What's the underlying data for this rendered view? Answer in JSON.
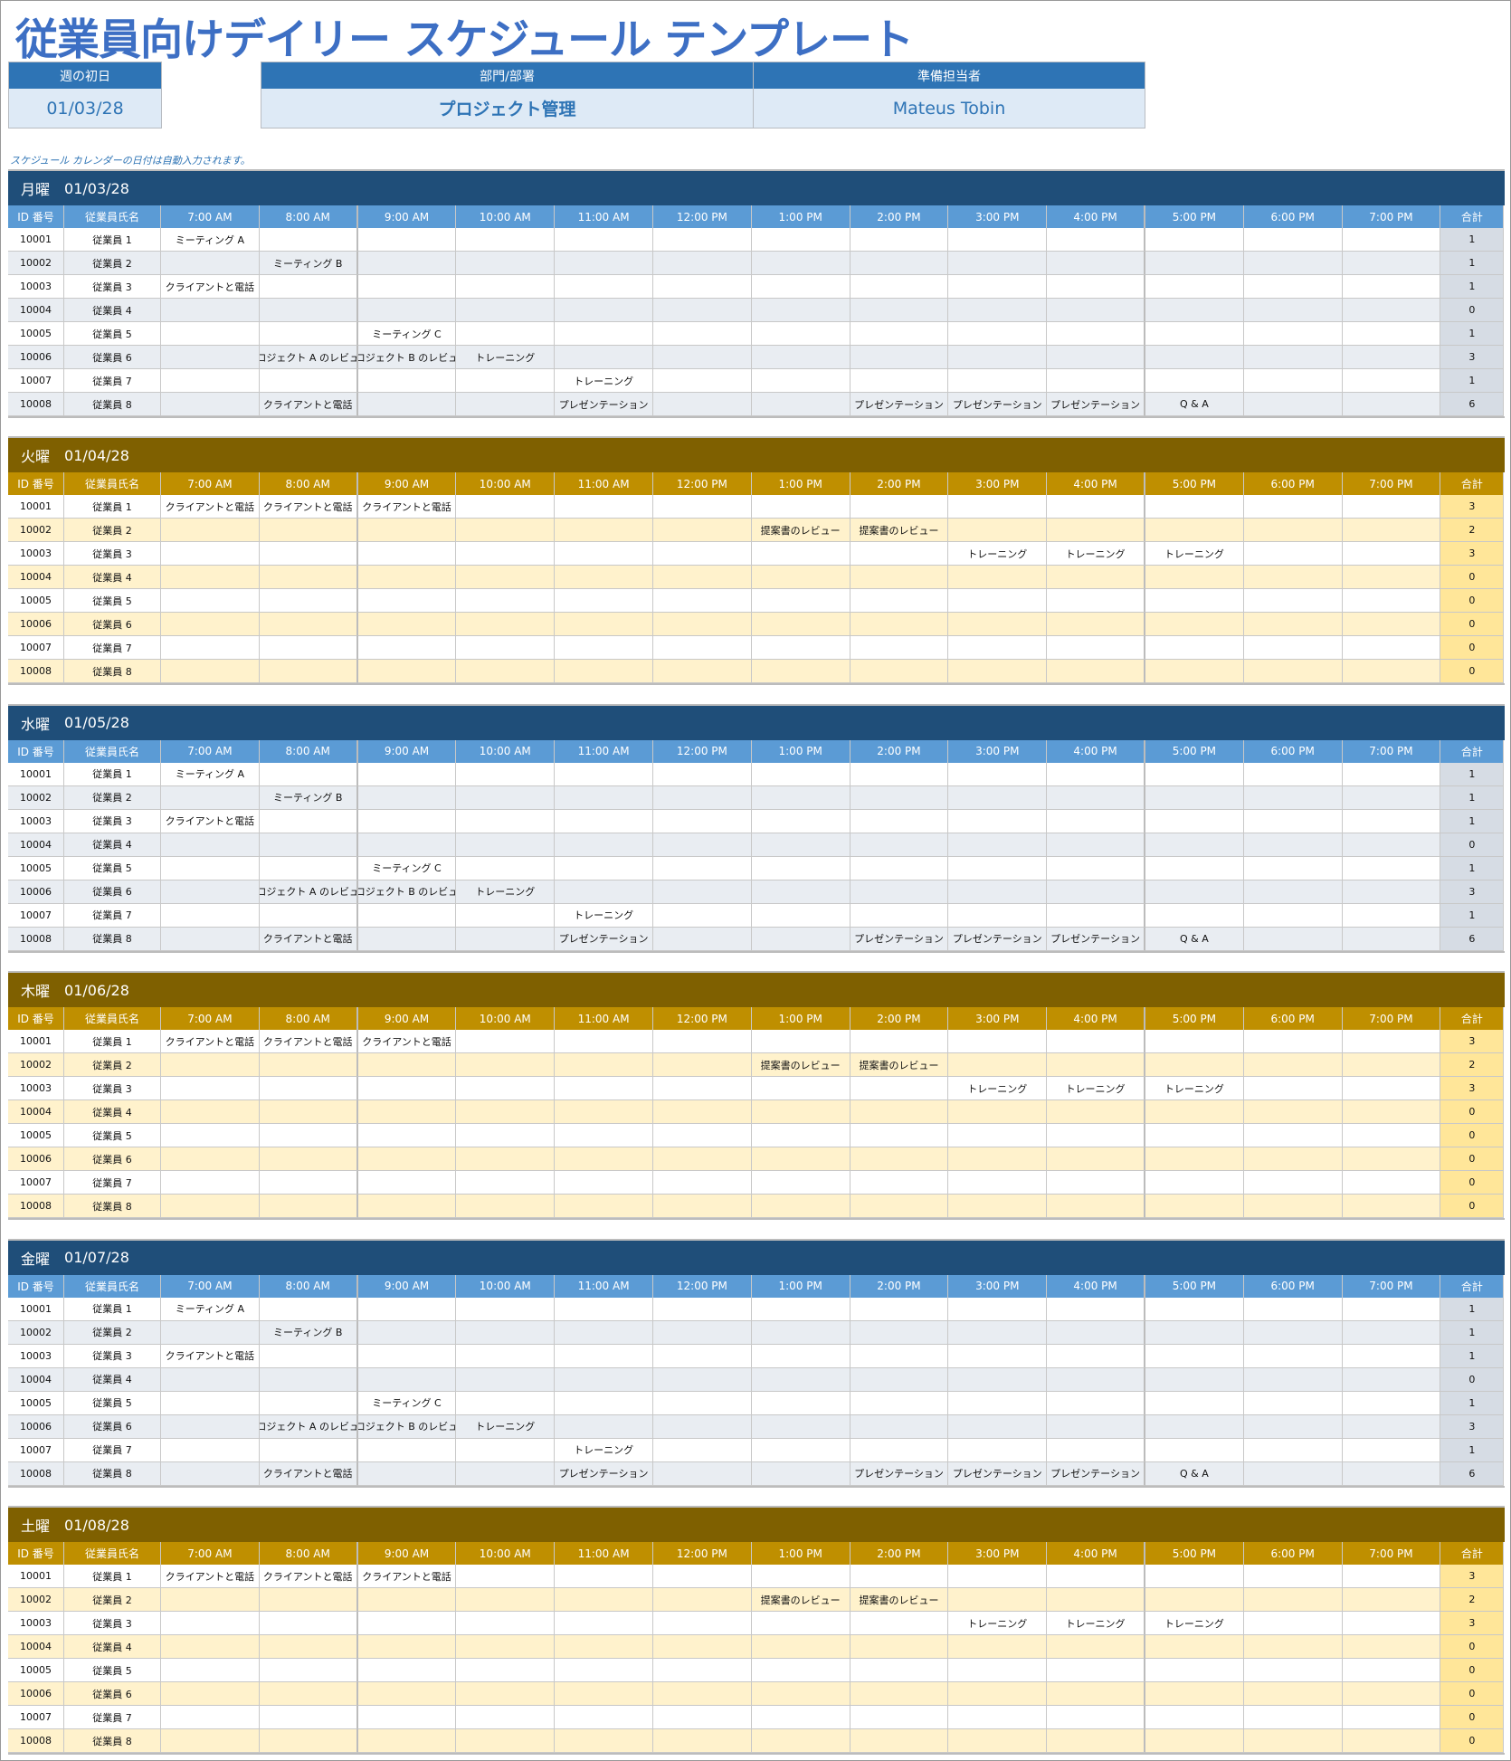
{
  "title": "従業員向けデイリー スケジュール テンプレート",
  "info": {
    "week_start_label": "週の初日",
    "week_start": "01/03/28",
    "dept_label": "部門/部署",
    "dept": "プロジェクト管理",
    "prepared_label": "準備担当者",
    "prepared": "Mateus Tobin"
  },
  "note": "スケジュール カレンダーの日付は自動入力されます。",
  "columns": {
    "id": "ID 番号",
    "name": "従業員氏名",
    "times": [
      "7:00 AM",
      "8:00 AM",
      "9:00 AM",
      "10:00 AM",
      "11:00 AM",
      "12:00 PM",
      "1:00 PM",
      "2:00 PM",
      "3:00 PM",
      "4:00 PM",
      "5:00 PM",
      "6:00 PM",
      "7:00 PM"
    ],
    "total": "合計"
  },
  "colors": {
    "blue_band": "#1f4e79",
    "blue_header": "#5b9bd5",
    "gold_band": "#7f6000",
    "gold_header": "#bf8f00"
  },
  "days": [
    {
      "day": "月曜",
      "date": "01/03/28",
      "theme": "blue",
      "rows": [
        {
          "id": "10001",
          "name": "従業員 1",
          "cells": [
            "ミーティング A",
            "",
            "",
            "",
            "",
            "",
            "",
            "",
            "",
            "",
            "",
            "",
            ""
          ],
          "total": "1"
        },
        {
          "id": "10002",
          "name": "従業員 2",
          "cells": [
            "",
            "ミーティング B",
            "",
            "",
            "",
            "",
            "",
            "",
            "",
            "",
            "",
            "",
            ""
          ],
          "total": "1"
        },
        {
          "id": "10003",
          "name": "従業員 3",
          "cells": [
            "クライアントと電話",
            "",
            "",
            "",
            "",
            "",
            "",
            "",
            "",
            "",
            "",
            "",
            ""
          ],
          "total": "1"
        },
        {
          "id": "10004",
          "name": "従業員 4",
          "cells": [
            "",
            "",
            "",
            "",
            "",
            "",
            "",
            "",
            "",
            "",
            "",
            "",
            ""
          ],
          "total": "0"
        },
        {
          "id": "10005",
          "name": "従業員 5",
          "cells": [
            "",
            "",
            "ミーティング C",
            "",
            "",
            "",
            "",
            "",
            "",
            "",
            "",
            "",
            ""
          ],
          "total": "1"
        },
        {
          "id": "10006",
          "name": "従業員 6",
          "cells": [
            "",
            "プロジェクト A のレビュー",
            "プロジェクト B のレビュー",
            "トレーニング",
            "",
            "",
            "",
            "",
            "",
            "",
            "",
            "",
            ""
          ],
          "total": "3"
        },
        {
          "id": "10007",
          "name": "従業員 7",
          "cells": [
            "",
            "",
            "",
            "",
            "トレーニング",
            "",
            "",
            "",
            "",
            "",
            "",
            "",
            ""
          ],
          "total": "1"
        },
        {
          "id": "10008",
          "name": "従業員 8",
          "cells": [
            "",
            "クライアントと電話",
            "",
            "",
            "プレゼンテーション",
            "",
            "",
            "プレゼンテーション",
            "プレゼンテーション",
            "プレゼンテーション",
            "Q & A",
            "",
            ""
          ],
          "total": "6"
        }
      ]
    },
    {
      "day": "火曜",
      "date": "01/04/28",
      "theme": "gold",
      "rows": [
        {
          "id": "10001",
          "name": "従業員 1",
          "cells": [
            "クライアントと電話",
            "クライアントと電話",
            "クライアントと電話",
            "",
            "",
            "",
            "",
            "",
            "",
            "",
            "",
            "",
            ""
          ],
          "total": "3"
        },
        {
          "id": "10002",
          "name": "従業員 2",
          "cells": [
            "",
            "",
            "",
            "",
            "",
            "",
            "提案書のレビュー",
            "提案書のレビュー",
            "",
            "",
            "",
            "",
            ""
          ],
          "total": "2"
        },
        {
          "id": "10003",
          "name": "従業員 3",
          "cells": [
            "",
            "",
            "",
            "",
            "",
            "",
            "",
            "",
            "トレーニング",
            "トレーニング",
            "トレーニング",
            "",
            ""
          ],
          "total": "3"
        },
        {
          "id": "10004",
          "name": "従業員 4",
          "cells": [
            "",
            "",
            "",
            "",
            "",
            "",
            "",
            "",
            "",
            "",
            "",
            "",
            ""
          ],
          "total": "0"
        },
        {
          "id": "10005",
          "name": "従業員 5",
          "cells": [
            "",
            "",
            "",
            "",
            "",
            "",
            "",
            "",
            "",
            "",
            "",
            "",
            ""
          ],
          "total": "0"
        },
        {
          "id": "10006",
          "name": "従業員 6",
          "cells": [
            "",
            "",
            "",
            "",
            "",
            "",
            "",
            "",
            "",
            "",
            "",
            "",
            ""
          ],
          "total": "0"
        },
        {
          "id": "10007",
          "name": "従業員 7",
          "cells": [
            "",
            "",
            "",
            "",
            "",
            "",
            "",
            "",
            "",
            "",
            "",
            "",
            ""
          ],
          "total": "0"
        },
        {
          "id": "10008",
          "name": "従業員 8",
          "cells": [
            "",
            "",
            "",
            "",
            "",
            "",
            "",
            "",
            "",
            "",
            "",
            "",
            ""
          ],
          "total": "0"
        }
      ]
    },
    {
      "day": "水曜",
      "date": "01/05/28",
      "theme": "blue",
      "rows": [
        {
          "id": "10001",
          "name": "従業員 1",
          "cells": [
            "ミーティング A",
            "",
            "",
            "",
            "",
            "",
            "",
            "",
            "",
            "",
            "",
            "",
            ""
          ],
          "total": "1"
        },
        {
          "id": "10002",
          "name": "従業員 2",
          "cells": [
            "",
            "ミーティング B",
            "",
            "",
            "",
            "",
            "",
            "",
            "",
            "",
            "",
            "",
            ""
          ],
          "total": "1"
        },
        {
          "id": "10003",
          "name": "従業員 3",
          "cells": [
            "クライアントと電話",
            "",
            "",
            "",
            "",
            "",
            "",
            "",
            "",
            "",
            "",
            "",
            ""
          ],
          "total": "1"
        },
        {
          "id": "10004",
          "name": "従業員 4",
          "cells": [
            "",
            "",
            "",
            "",
            "",
            "",
            "",
            "",
            "",
            "",
            "",
            "",
            ""
          ],
          "total": "0"
        },
        {
          "id": "10005",
          "name": "従業員 5",
          "cells": [
            "",
            "",
            "ミーティング C",
            "",
            "",
            "",
            "",
            "",
            "",
            "",
            "",
            "",
            ""
          ],
          "total": "1"
        },
        {
          "id": "10006",
          "name": "従業員 6",
          "cells": [
            "",
            "プロジェクト A のレビュー",
            "プロジェクト B のレビュー",
            "トレーニング",
            "",
            "",
            "",
            "",
            "",
            "",
            "",
            "",
            ""
          ],
          "total": "3"
        },
        {
          "id": "10007",
          "name": "従業員 7",
          "cells": [
            "",
            "",
            "",
            "",
            "トレーニング",
            "",
            "",
            "",
            "",
            "",
            "",
            "",
            ""
          ],
          "total": "1"
        },
        {
          "id": "10008",
          "name": "従業員 8",
          "cells": [
            "",
            "クライアントと電話",
            "",
            "",
            "プレゼンテーション",
            "",
            "",
            "プレゼンテーション",
            "プレゼンテーション",
            "プレゼンテーション",
            "Q & A",
            "",
            ""
          ],
          "total": "6"
        }
      ]
    },
    {
      "day": "木曜",
      "date": "01/06/28",
      "theme": "gold",
      "rows": [
        {
          "id": "10001",
          "name": "従業員 1",
          "cells": [
            "クライアントと電話",
            "クライアントと電話",
            "クライアントと電話",
            "",
            "",
            "",
            "",
            "",
            "",
            "",
            "",
            "",
            ""
          ],
          "total": "3"
        },
        {
          "id": "10002",
          "name": "従業員 2",
          "cells": [
            "",
            "",
            "",
            "",
            "",
            "",
            "提案書のレビュー",
            "提案書のレビュー",
            "",
            "",
            "",
            "",
            ""
          ],
          "total": "2"
        },
        {
          "id": "10003",
          "name": "従業員 3",
          "cells": [
            "",
            "",
            "",
            "",
            "",
            "",
            "",
            "",
            "トレーニング",
            "トレーニング",
            "トレーニング",
            "",
            ""
          ],
          "total": "3"
        },
        {
          "id": "10004",
          "name": "従業員 4",
          "cells": [
            "",
            "",
            "",
            "",
            "",
            "",
            "",
            "",
            "",
            "",
            "",
            "",
            ""
          ],
          "total": "0"
        },
        {
          "id": "10005",
          "name": "従業員 5",
          "cells": [
            "",
            "",
            "",
            "",
            "",
            "",
            "",
            "",
            "",
            "",
            "",
            "",
            ""
          ],
          "total": "0"
        },
        {
          "id": "10006",
          "name": "従業員 6",
          "cells": [
            "",
            "",
            "",
            "",
            "",
            "",
            "",
            "",
            "",
            "",
            "",
            "",
            ""
          ],
          "total": "0"
        },
        {
          "id": "10007",
          "name": "従業員 7",
          "cells": [
            "",
            "",
            "",
            "",
            "",
            "",
            "",
            "",
            "",
            "",
            "",
            "",
            ""
          ],
          "total": "0"
        },
        {
          "id": "10008",
          "name": "従業員 8",
          "cells": [
            "",
            "",
            "",
            "",
            "",
            "",
            "",
            "",
            "",
            "",
            "",
            "",
            ""
          ],
          "total": "0"
        }
      ]
    },
    {
      "day": "金曜",
      "date": "01/07/28",
      "theme": "blue",
      "rows": [
        {
          "id": "10001",
          "name": "従業員 1",
          "cells": [
            "ミーティング A",
            "",
            "",
            "",
            "",
            "",
            "",
            "",
            "",
            "",
            "",
            "",
            ""
          ],
          "total": "1"
        },
        {
          "id": "10002",
          "name": "従業員 2",
          "cells": [
            "",
            "ミーティング B",
            "",
            "",
            "",
            "",
            "",
            "",
            "",
            "",
            "",
            "",
            ""
          ],
          "total": "1"
        },
        {
          "id": "10003",
          "name": "従業員 3",
          "cells": [
            "クライアントと電話",
            "",
            "",
            "",
            "",
            "",
            "",
            "",
            "",
            "",
            "",
            "",
            ""
          ],
          "total": "1"
        },
        {
          "id": "10004",
          "name": "従業員 4",
          "cells": [
            "",
            "",
            "",
            "",
            "",
            "",
            "",
            "",
            "",
            "",
            "",
            "",
            ""
          ],
          "total": "0"
        },
        {
          "id": "10005",
          "name": "従業員 5",
          "cells": [
            "",
            "",
            "ミーティング C",
            "",
            "",
            "",
            "",
            "",
            "",
            "",
            "",
            "",
            ""
          ],
          "total": "1"
        },
        {
          "id": "10006",
          "name": "従業員 6",
          "cells": [
            "",
            "プロジェクト A のレビュー",
            "プロジェクト B のレビュー",
            "トレーニング",
            "",
            "",
            "",
            "",
            "",
            "",
            "",
            "",
            ""
          ],
          "total": "3"
        },
        {
          "id": "10007",
          "name": "従業員 7",
          "cells": [
            "",
            "",
            "",
            "",
            "トレーニング",
            "",
            "",
            "",
            "",
            "",
            "",
            "",
            ""
          ],
          "total": "1"
        },
        {
          "id": "10008",
          "name": "従業員 8",
          "cells": [
            "",
            "クライアントと電話",
            "",
            "",
            "プレゼンテーション",
            "",
            "",
            "プレゼンテーション",
            "プレゼンテーション",
            "プレゼンテーション",
            "Q & A",
            "",
            ""
          ],
          "total": "6"
        }
      ]
    },
    {
      "day": "土曜",
      "date": "01/08/28",
      "theme": "gold",
      "rows": [
        {
          "id": "10001",
          "name": "従業員 1",
          "cells": [
            "クライアントと電話",
            "クライアントと電話",
            "クライアントと電話",
            "",
            "",
            "",
            "",
            "",
            "",
            "",
            "",
            "",
            ""
          ],
          "total": "3"
        },
        {
          "id": "10002",
          "name": "従業員 2",
          "cells": [
            "",
            "",
            "",
            "",
            "",
            "",
            "提案書のレビュー",
            "提案書のレビュー",
            "",
            "",
            "",
            "",
            ""
          ],
          "total": "2"
        },
        {
          "id": "10003",
          "name": "従業員 3",
          "cells": [
            "",
            "",
            "",
            "",
            "",
            "",
            "",
            "",
            "トレーニング",
            "トレーニング",
            "トレーニング",
            "",
            ""
          ],
          "total": "3"
        },
        {
          "id": "10004",
          "name": "従業員 4",
          "cells": [
            "",
            "",
            "",
            "",
            "",
            "",
            "",
            "",
            "",
            "",
            "",
            "",
            ""
          ],
          "total": "0"
        },
        {
          "id": "10005",
          "name": "従業員 5",
          "cells": [
            "",
            "",
            "",
            "",
            "",
            "",
            "",
            "",
            "",
            "",
            "",
            "",
            ""
          ],
          "total": "0"
        },
        {
          "id": "10006",
          "name": "従業員 6",
          "cells": [
            "",
            "",
            "",
            "",
            "",
            "",
            "",
            "",
            "",
            "",
            "",
            "",
            ""
          ],
          "total": "0"
        },
        {
          "id": "10007",
          "name": "従業員 7",
          "cells": [
            "",
            "",
            "",
            "",
            "",
            "",
            "",
            "",
            "",
            "",
            "",
            "",
            ""
          ],
          "total": "0"
        },
        {
          "id": "10008",
          "name": "従業員 8",
          "cells": [
            "",
            "",
            "",
            "",
            "",
            "",
            "",
            "",
            "",
            "",
            "",
            "",
            ""
          ],
          "total": "0"
        }
      ]
    }
  ]
}
